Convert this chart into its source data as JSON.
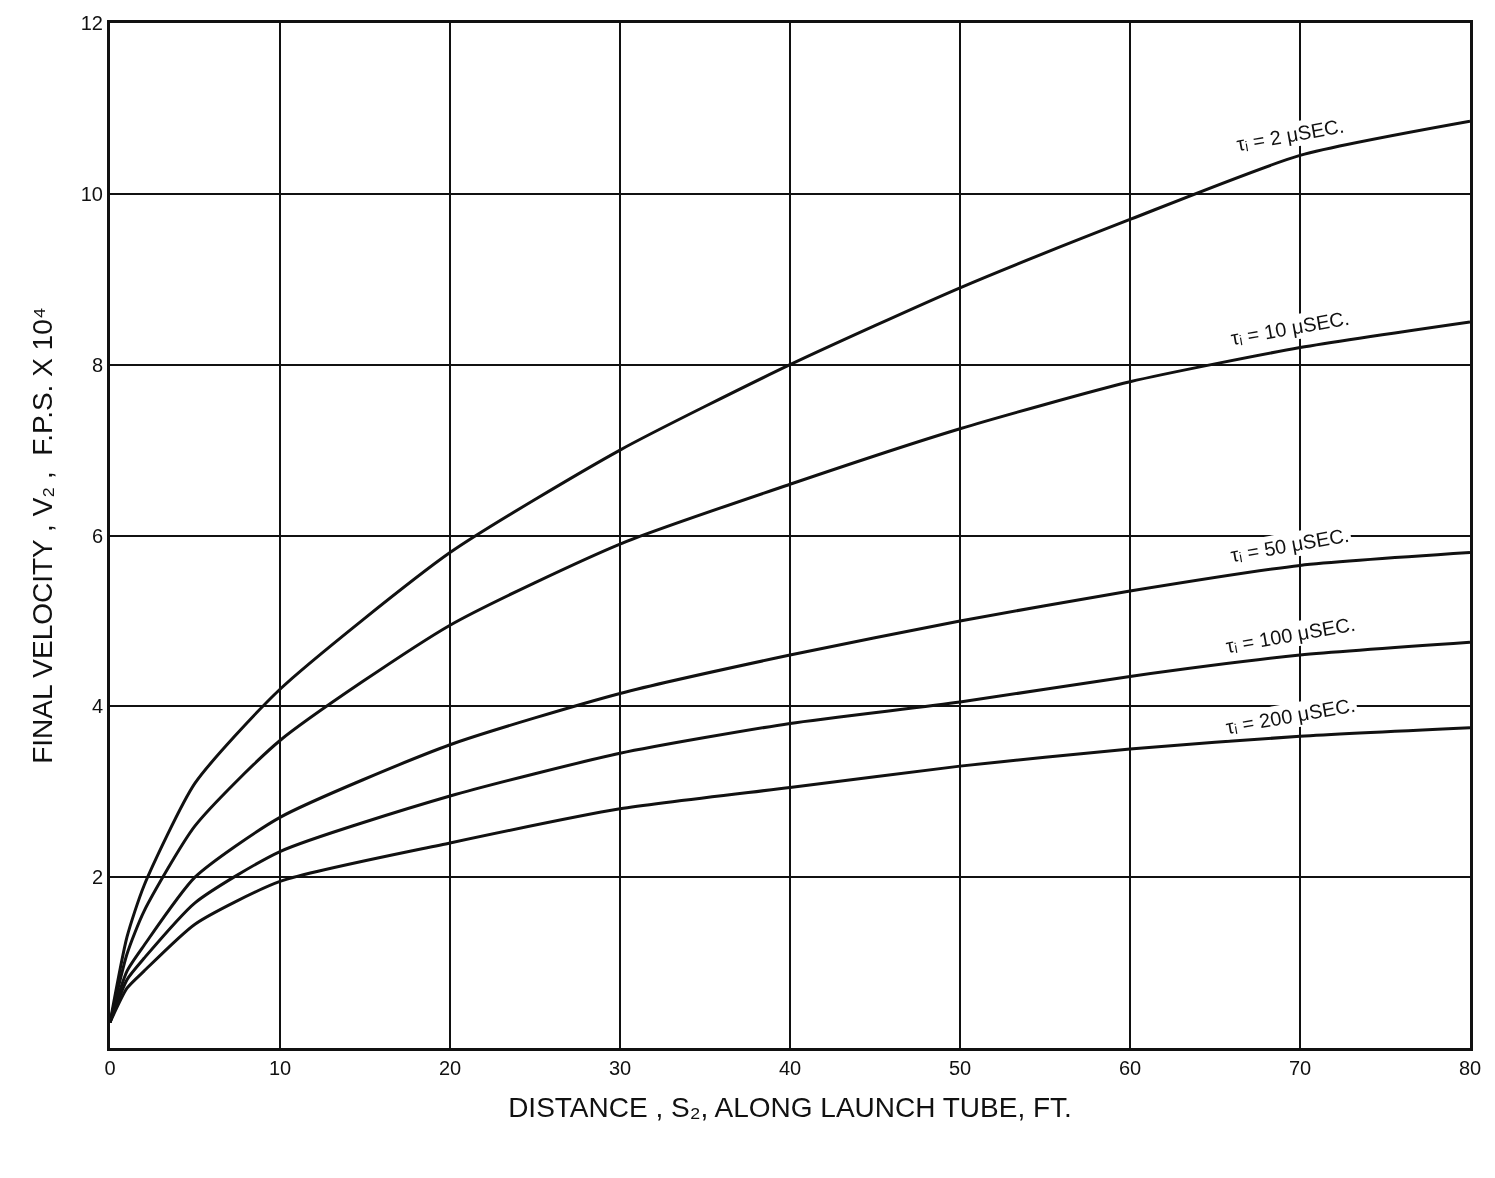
{
  "chart_data": {
    "type": "line",
    "xlabel": "DISTANCE , S₂, ALONG LAUNCH TUBE, FT.",
    "ylabel": "FINAL VELOCITY , V₂ ,  F.P.S. X 10⁴",
    "x": [
      0,
      1,
      2,
      5,
      10,
      20,
      30,
      40,
      50,
      60,
      70,
      80
    ],
    "series": [
      {
        "name": "τᵢ = 2 μSEC.",
        "color": "#111111",
        "values": [
          0.3,
          1.3,
          1.9,
          3.1,
          4.2,
          5.8,
          7.0,
          8.0,
          8.9,
          9.7,
          10.45,
          10.85
        ]
      },
      {
        "name": "τᵢ = 10 μSEC.",
        "color": "#111111",
        "values": [
          0.3,
          1.1,
          1.6,
          2.6,
          3.6,
          4.95,
          5.9,
          6.6,
          7.25,
          7.8,
          8.2,
          8.5
        ]
      },
      {
        "name": "τᵢ = 50 μSEC.",
        "color": "#111111",
        "values": [
          0.3,
          0.9,
          1.2,
          2.0,
          2.7,
          3.55,
          4.15,
          4.6,
          5.0,
          5.35,
          5.65,
          5.8
        ]
      },
      {
        "name": "τᵢ = 100 μSEC.",
        "color": "#111111",
        "values": [
          0.3,
          0.8,
          1.05,
          1.7,
          2.3,
          2.95,
          3.45,
          3.8,
          4.05,
          4.35,
          4.6,
          4.75
        ]
      },
      {
        "name": "τᵢ = 200 μSEC.",
        "color": "#111111",
        "values": [
          0.3,
          0.7,
          0.9,
          1.45,
          1.95,
          2.4,
          2.8,
          3.05,
          3.3,
          3.5,
          3.65,
          3.75
        ]
      }
    ],
    "xlim": [
      0,
      80
    ],
    "xticks": [
      0,
      10,
      20,
      30,
      40,
      50,
      60,
      70,
      80
    ],
    "ylim": [
      0,
      12
    ],
    "yticks": [
      {
        "value": 0,
        "label": null
      },
      2,
      4,
      6,
      8,
      10,
      12
    ],
    "grid": true,
    "marker": "none",
    "line_style": "solid"
  }
}
